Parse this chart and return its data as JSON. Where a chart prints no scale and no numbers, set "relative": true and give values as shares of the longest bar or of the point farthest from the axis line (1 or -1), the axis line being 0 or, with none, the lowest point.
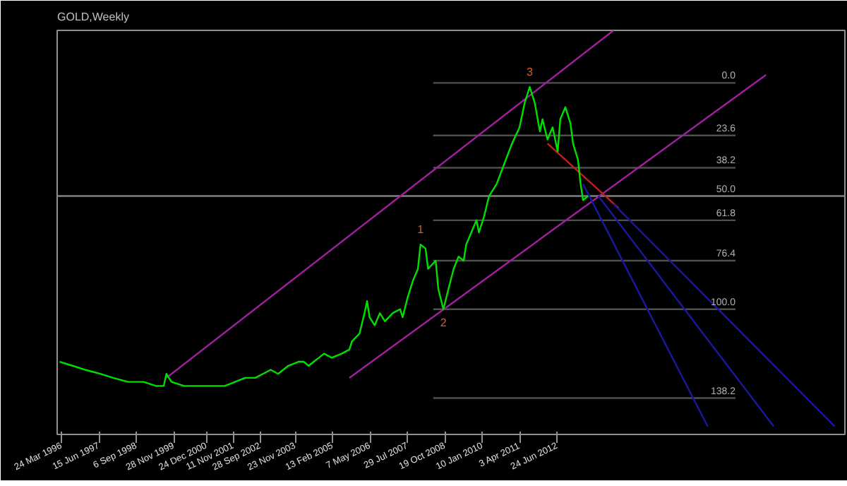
{
  "chart_data": {
    "type": "line",
    "title": "GOLD,Weekly",
    "relative": true,
    "xlim": [
      "1996-02",
      "2021-12"
    ],
    "xticks": [
      {
        "value": "1996-03-24",
        "label": "24 Mar 1996"
      },
      {
        "value": "1997-06-15",
        "label": "15 Jun 1997"
      },
      {
        "value": "1998-09-06",
        "label": "6 Sep 1998"
      },
      {
        "value": "1999-11-28",
        "label": "28 Nov 1999"
      },
      {
        "value": "2000-12-24",
        "label": "24 Dec 2000"
      },
      {
        "value": "2001-11-11",
        "label": "11 Nov 2001"
      },
      {
        "value": "2002-09-28",
        "label": "28 Sep 2002"
      },
      {
        "value": "2003-11-23",
        "label": "23 Nov 2003"
      },
      {
        "value": "2005-02-13",
        "label": "13 Feb 2005"
      },
      {
        "value": "2006-05-07",
        "label": "7 May 2006"
      },
      {
        "value": "2007-07-29",
        "label": "29 Jul 2007"
      },
      {
        "value": "2008-10-19",
        "label": "19 Oct 2008"
      },
      {
        "value": "2010-01-10",
        "label": "10 Jan 2010"
      },
      {
        "value": "2011-04-03",
        "label": "3 Apr 2011"
      },
      {
        "value": "2012-06-24",
        "label": "24 Jun 2012"
      }
    ],
    "series": [
      {
        "color": "#808080",
        "x": [
          "1996-02",
          "2021-12"
        ],
        "values": [
          0.59,
          0.59
        ]
      },
      {
        "color": "#505050",
        "x": [
          "2008-06",
          "2018-05"
        ],
        "values": [
          0.87,
          0.87
        ]
      },
      {
        "color": "#505050",
        "x": [
          "2008-06",
          "2018-05"
        ],
        "values": [
          0.74,
          0.74
        ]
      },
      {
        "color": "#505050",
        "x": [
          "2008-06",
          "2018-05"
        ],
        "values": [
          0.66,
          0.66
        ]
      },
      {
        "color": "#505050",
        "x": [
          "2008-06",
          "2018-05"
        ],
        "values": [
          0.53,
          0.53
        ]
      },
      {
        "color": "#505050",
        "x": [
          "2008-06",
          "2018-05"
        ],
        "values": [
          0.43,
          0.43
        ]
      },
      {
        "color": "#505050",
        "x": [
          "2008-06",
          "2018-05"
        ],
        "values": [
          0.31,
          0.31
        ]
      },
      {
        "color": "#505050",
        "x": [
          "2008-06",
          "2018-05"
        ],
        "values": [
          0.09,
          0.09
        ]
      },
      {
        "color": "#a020a0",
        "x": [
          "1999-09",
          "2014-05"
        ],
        "values": [
          0.14,
          1
        ]
      },
      {
        "color": "#a020a0",
        "x": [
          "2005-09",
          "2019-05"
        ],
        "values": [
          0.14,
          0.89
        ]
      },
      {
        "color": "#c02020",
        "x": [
          "2012-03",
          "2014-07"
        ],
        "values": [
          0.72,
          0.56
        ]
      },
      {
        "color": "#1818a0",
        "x": [
          "2013-05",
          "2017-06"
        ],
        "values": [
          0.62,
          0.02
        ]
      },
      {
        "color": "#1818a0",
        "x": [
          "2013-11",
          "2019-08"
        ],
        "values": [
          0.59,
          0.02
        ]
      },
      {
        "color": "#1818a0",
        "x": [
          "2014-05",
          "2021-08"
        ],
        "values": [
          0.57,
          0.02
        ]
      },
      {
        "color": "#00e000",
        "x": [
          "1996-03",
          "1996-08",
          "1997-01",
          "1997-07",
          "1997-12",
          "1998-06",
          "1998-12",
          "1999-05",
          "1999-08",
          "1999-09",
          "1999-11",
          "2000-04",
          "2000-09",
          "2001-02",
          "2001-04",
          "2001-08",
          "2001-12",
          "2002-04",
          "2002-08",
          "2002-11",
          "2003-02",
          "2003-05",
          "2003-09",
          "2004-01",
          "2004-03",
          "2004-05",
          "2004-09",
          "2004-11",
          "2005-02",
          "2005-06",
          "2005-09",
          "2005-10",
          "2006-01",
          "2006-03",
          "2006-04",
          "2006-05",
          "2006-07",
          "2006-09",
          "2006-11",
          "2007-02",
          "2007-05",
          "2007-06",
          "2007-08",
          "2007-10",
          "2007-12",
          "2008-01",
          "2008-03",
          "2008-04",
          "2008-07",
          "2008-08",
          "2008-10",
          "2008-12",
          "2009-02",
          "2009-04",
          "2009-06",
          "2009-07",
          "2009-09",
          "2009-11",
          "2009-12",
          "2010-02",
          "2010-04",
          "2010-07",
          "2010-10",
          "2011-01",
          "2011-04",
          "2011-06",
          "2011-08",
          "2011-10",
          "2011-12",
          "2012-01",
          "2012-03",
          "2012-05",
          "2012-07",
          "2012-08",
          "2012-10",
          "2012-12",
          "2013-01",
          "2013-03",
          "2013-04",
          "2013-05",
          "2013-07"
        ],
        "values": [
          0.18,
          0.17,
          0.16,
          0.15,
          0.14,
          0.13,
          0.13,
          0.12,
          0.12,
          0.15,
          0.13,
          0.12,
          0.12,
          0.12,
          0.12,
          0.12,
          0.13,
          0.14,
          0.14,
          0.15,
          0.16,
          0.15,
          0.17,
          0.18,
          0.18,
          0.17,
          0.19,
          0.2,
          0.19,
          0.2,
          0.21,
          0.23,
          0.25,
          0.3,
          0.33,
          0.29,
          0.27,
          0.3,
          0.28,
          0.3,
          0.31,
          0.29,
          0.34,
          0.38,
          0.41,
          0.47,
          0.46,
          0.41,
          0.43,
          0.36,
          0.31,
          0.36,
          0.41,
          0.44,
          0.43,
          0.47,
          0.5,
          0.53,
          0.5,
          0.54,
          0.59,
          0.62,
          0.67,
          0.72,
          0.76,
          0.82,
          0.86,
          0.82,
          0.75,
          0.78,
          0.73,
          0.76,
          0.7,
          0.78,
          0.81,
          0.77,
          0.72,
          0.68,
          0.62,
          0.58,
          0.59
        ]
      }
    ],
    "annotations": [
      {
        "text": "1",
        "x": "2008-01",
        "y": 0.47
      },
      {
        "text": "2",
        "x": "2008-10",
        "y": 0.31
      },
      {
        "text": "3",
        "x": "2011-08",
        "y": 0.86
      },
      {
        "text": "0.0",
        "x": "2018-05",
        "y": 0.87
      },
      {
        "text": "23.6",
        "x": "2018-05",
        "y": 0.74
      },
      {
        "text": "38.2",
        "x": "2018-05",
        "y": 0.66
      },
      {
        "text": "50.0",
        "x": "2018-05",
        "y": 0.59
      },
      {
        "text": "61.8",
        "x": "2018-05",
        "y": 0.53
      },
      {
        "text": "76.4",
        "x": "2018-05",
        "y": 0.43
      },
      {
        "text": "100.0",
        "x": "2018-05",
        "y": 0.31
      },
      {
        "text": "138.2",
        "x": "2018-05",
        "y": 0.09
      }
    ]
  }
}
